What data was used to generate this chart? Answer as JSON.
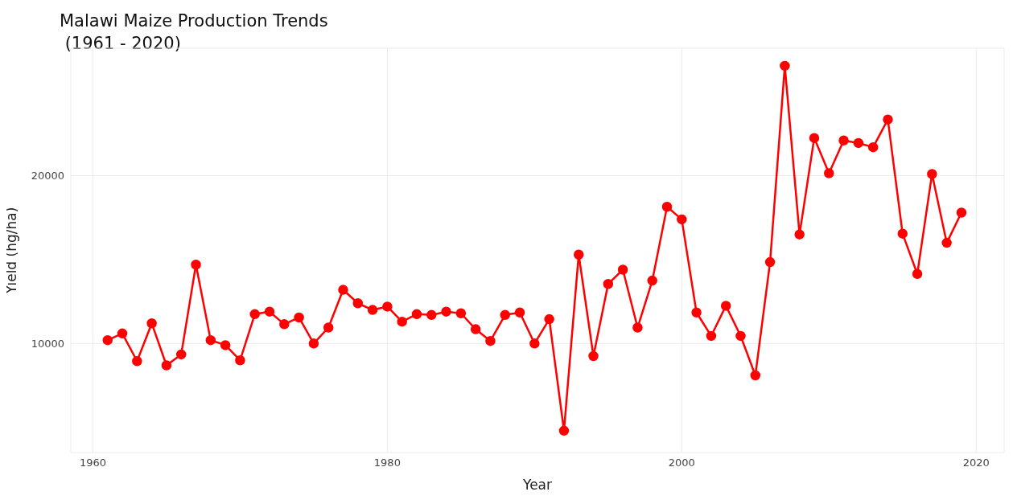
{
  "chart_data": {
    "type": "line",
    "title": "Malawi Maize Production Trends\n (1961 - 2020)",
    "xlabel": "Year",
    "ylabel": "Yield (hg/ha)",
    "x": [
      1961,
      1962,
      1963,
      1964,
      1965,
      1966,
      1967,
      1968,
      1969,
      1970,
      1971,
      1972,
      1973,
      1974,
      1975,
      1976,
      1977,
      1978,
      1979,
      1980,
      1981,
      1982,
      1983,
      1984,
      1985,
      1986,
      1987,
      1988,
      1989,
      1990,
      1991,
      1992,
      1993,
      1994,
      1995,
      1996,
      1997,
      1998,
      1999,
      2000,
      2001,
      2002,
      2003,
      2004,
      2005,
      2006,
      2007,
      2008,
      2009,
      2010,
      2011,
      2012,
      2013,
      2014,
      2015,
      2016,
      2017,
      2018,
      2019
    ],
    "series": [
      {
        "color": "#ff0000",
        "values": [
          10200,
          10600,
          8950,
          11200,
          8700,
          9350,
          14700,
          10200,
          9900,
          9000,
          11750,
          11900,
          11150,
          11550,
          10000,
          10950,
          13200,
          12400,
          12000,
          12200,
          11300,
          11750,
          11700,
          11900,
          11800,
          10850,
          10150,
          11700,
          11850,
          10000,
          11450,
          4800,
          15300,
          9250,
          13550,
          14400,
          10950,
          13750,
          18150,
          17400,
          11850,
          10450,
          12250,
          10450,
          8100,
          14850,
          26550,
          16500,
          22250,
          20150,
          22100,
          21950,
          21700,
          23350,
          16550,
          14150,
          20100,
          16000,
          17800
        ]
      }
    ],
    "xlim": [
      1958.5,
      2021.9
    ],
    "xticks": [
      1960,
      1980,
      2000,
      2020
    ],
    "ylim": [
      3500,
      27600
    ],
    "yticks": [
      10000,
      20000
    ],
    "grid": true,
    "marker": "circle",
    "line_style": "solid"
  }
}
